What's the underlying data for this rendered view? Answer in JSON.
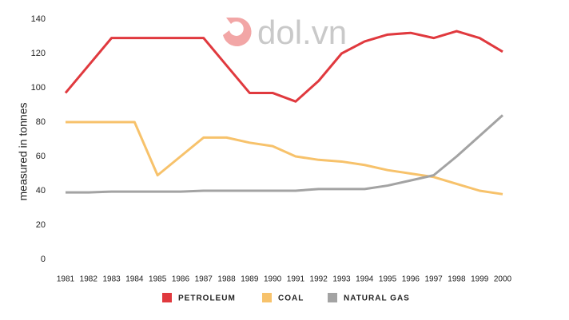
{
  "chart_data": {
    "type": "line",
    "watermark": "dol.vn",
    "y_label": "measured in tonnes",
    "categories": [
      "1981",
      "1982",
      "1983",
      "1984",
      "1985",
      "1986",
      "1987",
      "1988",
      "1989",
      "1990",
      "1991",
      "1992",
      "1993",
      "1994",
      "1995",
      "1996",
      "1997",
      "1998",
      "1999",
      "2000"
    ],
    "series": [
      {
        "name": "PETROLEUM",
        "color": "#e0393e",
        "values": [
          97,
          113,
          129,
          129,
          129,
          129,
          129,
          113,
          97,
          97,
          92,
          104,
          120,
          127,
          131,
          132,
          129,
          133,
          129,
          121
        ]
      },
      {
        "name": "COAL",
        "color": "#f7c26b",
        "values": [
          80,
          80,
          80,
          80,
          49,
          60,
          71,
          71,
          68,
          66,
          60,
          58,
          57,
          55,
          52,
          50,
          48,
          44,
          40,
          38
        ]
      },
      {
        "name": "NATURAL GAS",
        "color": "#a3a3a3",
        "values": [
          39,
          39,
          39.5,
          39.5,
          39.5,
          39.5,
          40,
          40,
          40,
          40,
          40,
          41,
          41,
          41,
          43,
          46,
          49,
          60,
          72,
          84
        ]
      }
    ],
    "ylim": [
      0,
      140
    ],
    "yticks": [
      0,
      20,
      40,
      60,
      80,
      100,
      120,
      140
    ],
    "grid": false,
    "legend": "bottom"
  }
}
